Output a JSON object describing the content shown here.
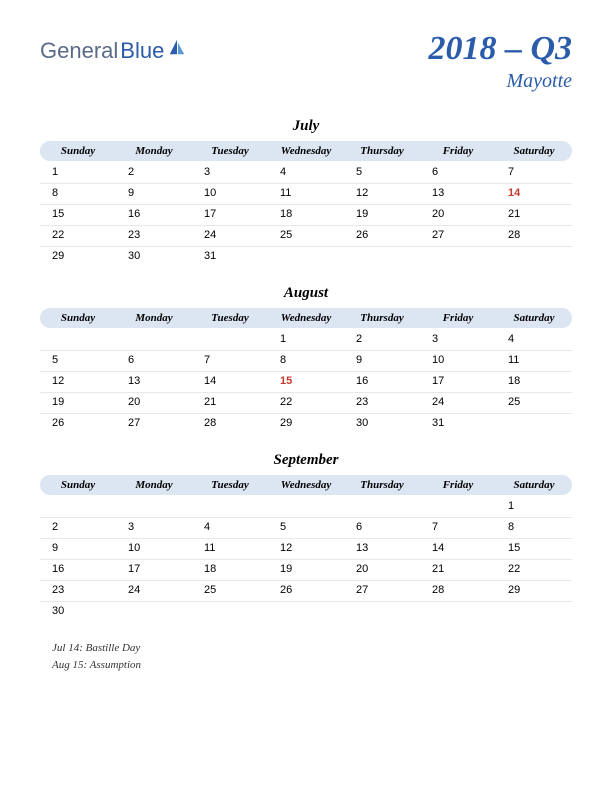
{
  "logo": {
    "general": "General",
    "blue": "Blue"
  },
  "title": {
    "main": "2018 – Q3",
    "sub": "Mayotte"
  },
  "dayNames": [
    "Sunday",
    "Monday",
    "Tuesday",
    "Wednesday",
    "Thursday",
    "Friday",
    "Saturday"
  ],
  "colors": {
    "headerBg": "#dce5f2",
    "brandText": "#2a5caa",
    "holidayText": "#c0392b",
    "dayText": "#000000"
  },
  "months": [
    {
      "name": "July",
      "weeks": [
        [
          {
            "d": "1"
          },
          {
            "d": "2"
          },
          {
            "d": "3"
          },
          {
            "d": "4"
          },
          {
            "d": "5"
          },
          {
            "d": "6"
          },
          {
            "d": "7"
          }
        ],
        [
          {
            "d": "8"
          },
          {
            "d": "9"
          },
          {
            "d": "10"
          },
          {
            "d": "11"
          },
          {
            "d": "12"
          },
          {
            "d": "13"
          },
          {
            "d": "14",
            "h": true
          }
        ],
        [
          {
            "d": "15"
          },
          {
            "d": "16"
          },
          {
            "d": "17"
          },
          {
            "d": "18"
          },
          {
            "d": "19"
          },
          {
            "d": "20"
          },
          {
            "d": "21"
          }
        ],
        [
          {
            "d": "22"
          },
          {
            "d": "23"
          },
          {
            "d": "24"
          },
          {
            "d": "25"
          },
          {
            "d": "26"
          },
          {
            "d": "27"
          },
          {
            "d": "28"
          }
        ],
        [
          {
            "d": "29"
          },
          {
            "d": "30"
          },
          {
            "d": "31"
          },
          {
            "d": ""
          },
          {
            "d": ""
          },
          {
            "d": ""
          },
          {
            "d": ""
          }
        ]
      ]
    },
    {
      "name": "August",
      "weeks": [
        [
          {
            "d": ""
          },
          {
            "d": ""
          },
          {
            "d": ""
          },
          {
            "d": "1"
          },
          {
            "d": "2"
          },
          {
            "d": "3"
          },
          {
            "d": "4"
          }
        ],
        [
          {
            "d": "5"
          },
          {
            "d": "6"
          },
          {
            "d": "7"
          },
          {
            "d": "8"
          },
          {
            "d": "9"
          },
          {
            "d": "10"
          },
          {
            "d": "11"
          }
        ],
        [
          {
            "d": "12"
          },
          {
            "d": "13"
          },
          {
            "d": "14"
          },
          {
            "d": "15",
            "h": true
          },
          {
            "d": "16"
          },
          {
            "d": "17"
          },
          {
            "d": "18"
          }
        ],
        [
          {
            "d": "19"
          },
          {
            "d": "20"
          },
          {
            "d": "21"
          },
          {
            "d": "22"
          },
          {
            "d": "23"
          },
          {
            "d": "24"
          },
          {
            "d": "25"
          }
        ],
        [
          {
            "d": "26"
          },
          {
            "d": "27"
          },
          {
            "d": "28"
          },
          {
            "d": "29"
          },
          {
            "d": "30"
          },
          {
            "d": "31"
          },
          {
            "d": ""
          }
        ]
      ]
    },
    {
      "name": "September",
      "weeks": [
        [
          {
            "d": ""
          },
          {
            "d": ""
          },
          {
            "d": ""
          },
          {
            "d": ""
          },
          {
            "d": ""
          },
          {
            "d": ""
          },
          {
            "d": "1"
          }
        ],
        [
          {
            "d": "2"
          },
          {
            "d": "3"
          },
          {
            "d": "4"
          },
          {
            "d": "5"
          },
          {
            "d": "6"
          },
          {
            "d": "7"
          },
          {
            "d": "8"
          }
        ],
        [
          {
            "d": "9"
          },
          {
            "d": "10"
          },
          {
            "d": "11"
          },
          {
            "d": "12"
          },
          {
            "d": "13"
          },
          {
            "d": "14"
          },
          {
            "d": "15"
          }
        ],
        [
          {
            "d": "16"
          },
          {
            "d": "17"
          },
          {
            "d": "18"
          },
          {
            "d": "19"
          },
          {
            "d": "20"
          },
          {
            "d": "21"
          },
          {
            "d": "22"
          }
        ],
        [
          {
            "d": "23"
          },
          {
            "d": "24"
          },
          {
            "d": "25"
          },
          {
            "d": "26"
          },
          {
            "d": "27"
          },
          {
            "d": "28"
          },
          {
            "d": "29"
          }
        ],
        [
          {
            "d": "30"
          },
          {
            "d": ""
          },
          {
            "d": ""
          },
          {
            "d": ""
          },
          {
            "d": ""
          },
          {
            "d": ""
          },
          {
            "d": ""
          }
        ]
      ]
    }
  ],
  "holidays": [
    "Jul 14: Bastille Day",
    "Aug 15: Assumption"
  ]
}
